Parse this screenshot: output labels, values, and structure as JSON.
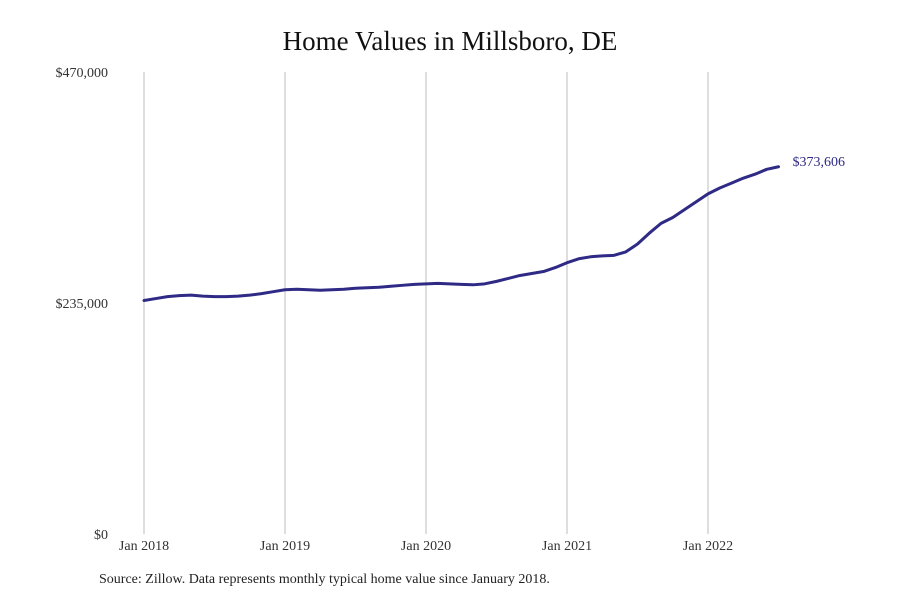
{
  "chart_data": {
    "type": "line",
    "title": "Home Values in Millsboro, DE",
    "xlabel": "",
    "ylabel": "",
    "ylim": [
      0,
      470000
    ],
    "y_ticks": [
      0,
      235000,
      470000
    ],
    "y_tick_labels": [
      "$0",
      "$235,000",
      "$470,000"
    ],
    "x_ticks": [
      "2018-01",
      "2019-01",
      "2020-01",
      "2021-01",
      "2022-01"
    ],
    "x_tick_labels": [
      "Jan 2018",
      "Jan 2019",
      "Jan 2020",
      "Jan 2021",
      "Jan 2022"
    ],
    "grid": "vertical",
    "legend": "none",
    "line_color": "#2e2a85",
    "series": [
      {
        "end_label": "$373,606",
        "x": [
          "2018-01",
          "2018-02",
          "2018-03",
          "2018-04",
          "2018-05",
          "2018-06",
          "2018-07",
          "2018-08",
          "2018-09",
          "2018-10",
          "2018-11",
          "2018-12",
          "2019-01",
          "2019-02",
          "2019-03",
          "2019-04",
          "2019-05",
          "2019-06",
          "2019-07",
          "2019-08",
          "2019-09",
          "2019-10",
          "2019-11",
          "2019-12",
          "2020-01",
          "2020-02",
          "2020-03",
          "2020-04",
          "2020-05",
          "2020-06",
          "2020-07",
          "2020-08",
          "2020-09",
          "2020-10",
          "2020-11",
          "2020-12",
          "2021-01",
          "2021-02",
          "2021-03",
          "2021-04",
          "2021-05",
          "2021-06",
          "2021-07",
          "2021-08",
          "2021-09",
          "2021-10",
          "2021-11",
          "2021-12",
          "2022-01",
          "2022-02",
          "2022-03",
          "2022-04",
          "2022-05",
          "2022-06",
          "2022-07"
        ],
        "values": [
          237500,
          239500,
          241500,
          242500,
          243000,
          242000,
          241500,
          241500,
          242000,
          243000,
          244500,
          246500,
          248500,
          249000,
          248500,
          248000,
          248500,
          249000,
          250000,
          250500,
          251000,
          252000,
          253000,
          254000,
          254500,
          255000,
          254500,
          254000,
          253500,
          254500,
          257000,
          260000,
          263000,
          265000,
          267000,
          271000,
          276000,
          280000,
          282000,
          283000,
          283500,
          287000,
          295000,
          306000,
          316000,
          322000,
          330000,
          338000,
          346000,
          352000,
          357000,
          362000,
          366000,
          371000,
          373606
        ]
      }
    ]
  },
  "source_note": "Source: Zillow. Data represents monthly typical home value since January 2018."
}
